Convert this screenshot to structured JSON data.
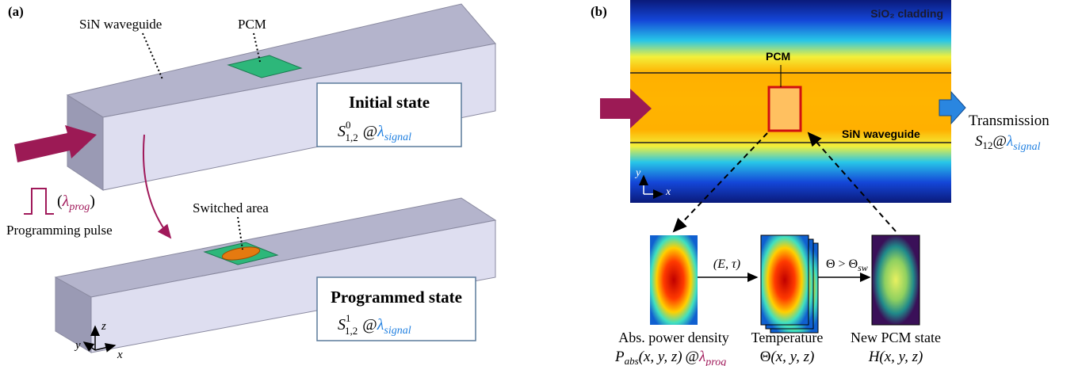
{
  "panel_a": {
    "label": "(a)",
    "waveguide_label": "SiN waveguide",
    "pcm_label": "PCM",
    "initial_state": {
      "title": "Initial state",
      "symbol": "S",
      "sup": "0",
      "sub": "1,2",
      "at": "@",
      "lambda": "λ",
      "lambda_sub": "signal"
    },
    "programmed_state": {
      "title": "Programmed state",
      "symbol": "S",
      "sup": "1",
      "sub": "1,2",
      "at": "@",
      "lambda": "λ",
      "lambda_sub": "signal"
    },
    "pulse": {
      "open": "(",
      "lambda": "λ",
      "lambda_sub": "prog",
      "close": ")",
      "caption": "Programming pulse"
    },
    "switched_area_label": "Switched area",
    "axes": {
      "x": "x",
      "y": "y",
      "z": "z"
    }
  },
  "panel_b": {
    "label": "(b)",
    "cladding_label": "SiO₂ cladding",
    "pcm_label": "PCM",
    "waveguide_label": "SiN waveguide",
    "transmission": {
      "title": "Transmission",
      "symbol": "S",
      "sub": "12",
      "at": "@",
      "lambda": "λ",
      "lambda_sub": "signal"
    },
    "axes": {
      "x": "x",
      "y": "y"
    },
    "steps": [
      {
        "caption": "Abs. power density",
        "symbol": "P",
        "sub": "abs",
        "args": "(x, y, z)",
        "at": "@",
        "lambda": "λ",
        "lambda_sub": "prog"
      },
      {
        "caption": "Temperature",
        "symbol": "Θ",
        "args": "(x, y, z)"
      },
      {
        "caption": "New PCM state",
        "symbol": "H",
        "args": "(x, y, z)"
      }
    ],
    "arrow_labels": [
      {
        "text": "(E, τ)"
      },
      {
        "text": "Θ > Θ",
        "sub": "sw"
      }
    ]
  }
}
